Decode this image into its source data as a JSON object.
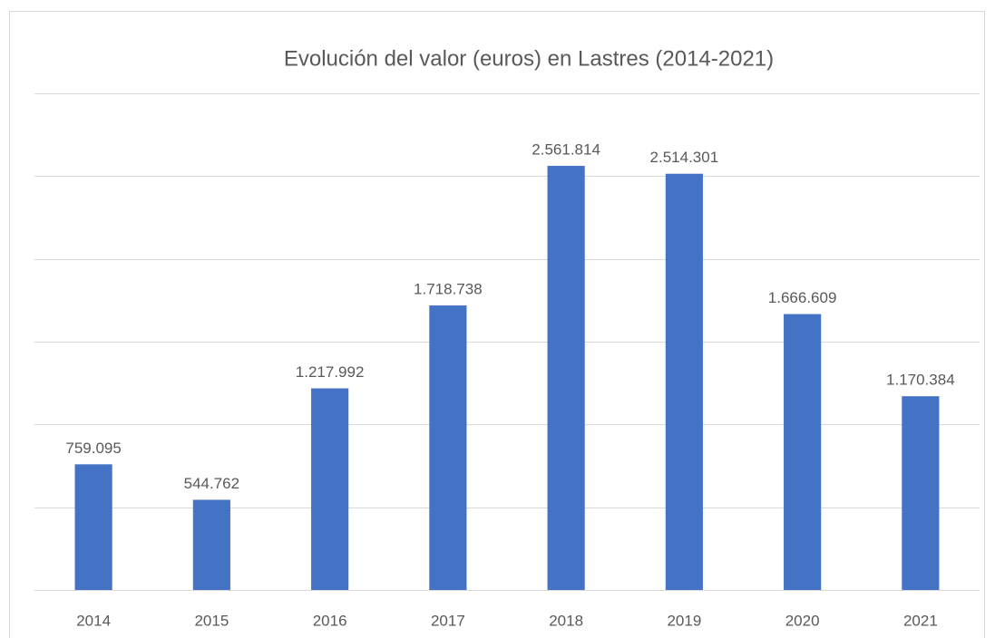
{
  "chart_data": {
    "type": "bar",
    "title": "Evolución del valor (euros) en Lastres (2014-2021)",
    "categories": [
      "2014",
      "2015",
      "2016",
      "2017",
      "2018",
      "2019",
      "2020",
      "2021"
    ],
    "values": [
      759095,
      544762,
      1217992,
      1718738,
      2561814,
      2514301,
      1666609,
      1170384
    ],
    "value_labels": [
      "759.095",
      "544.762",
      "1.217.992",
      "1.718.738",
      "2.561.814",
      "2.514.301",
      "1.666.609",
      "1.170.384"
    ],
    "color": "#4472c4",
    "ylim": [
      0,
      3000000
    ],
    "yticks": [
      0,
      500000,
      1000000,
      1500000,
      2000000,
      2500000,
      3000000
    ],
    "grid": true
  }
}
